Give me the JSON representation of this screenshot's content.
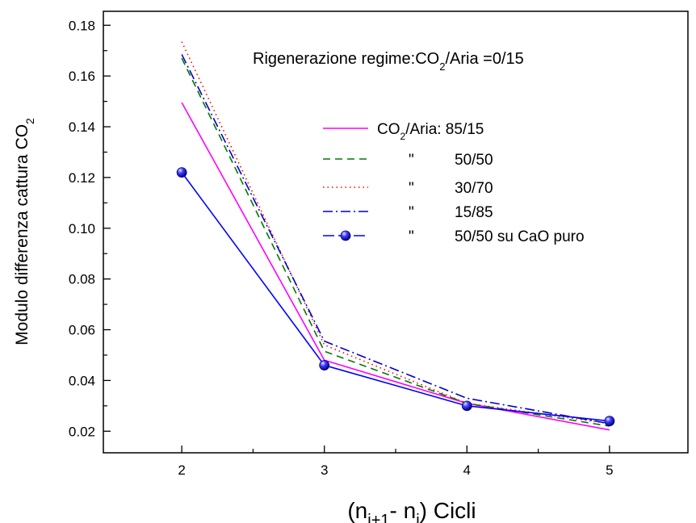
{
  "chart_data": {
    "type": "line",
    "title": {
      "main": "Rigenerazione regime:CO",
      "sub": "2",
      "tail": "/Aria =0/15"
    },
    "xlabel": {
      "open": "(n",
      "sub1": "i+1",
      "mid": "- n",
      "sub2": "i",
      "close": ") Cicli"
    },
    "ylabel": {
      "main": "Modulo differenza cattura CO",
      "sub": "2"
    },
    "x": [
      2,
      3,
      4,
      5
    ],
    "x_ticks": [
      "2",
      "3",
      "4",
      "5"
    ],
    "y_ticks": [
      "0.02",
      "0.04",
      "0.06",
      "0.08",
      "0.10",
      "0.12",
      "0.14",
      "0.16",
      "0.18"
    ],
    "xlim": [
      1.45,
      5.55
    ],
    "ylim": [
      0.0115,
      0.1855
    ],
    "grid": false,
    "legend_position": "upper-right",
    "series": [
      {
        "label_main": "CO",
        "label_sub": "2",
        "label_tail": "/Aria: 85/15",
        "values": [
          0.1495,
          0.048,
          0.031,
          0.0205
        ],
        "color": "#ff00ff",
        "dash": "",
        "marker": false
      },
      {
        "label_main": "\"",
        "label_value": "50/50",
        "values": [
          0.167,
          0.0515,
          0.031,
          0.022
        ],
        "color": "#007a00",
        "dash": "9,6",
        "marker": false
      },
      {
        "label_main": "\"",
        "label_value": "30/70",
        "values": [
          0.1735,
          0.054,
          0.031,
          0.023
        ],
        "color": "#ff0000",
        "dash": "1.5,4",
        "marker": false
      },
      {
        "label_main": "\"",
        "label_value": "15/85",
        "values": [
          0.1685,
          0.0555,
          0.033,
          0.023
        ],
        "color": "#0000cc",
        "dash": "12,4,2,4",
        "marker": false
      },
      {
        "label_main": "\"",
        "label_value": "50/50 su CaO puro",
        "values": [
          0.122,
          0.046,
          0.03,
          0.024
        ],
        "color": "#0000ff",
        "dash": "",
        "marker": true
      }
    ]
  }
}
